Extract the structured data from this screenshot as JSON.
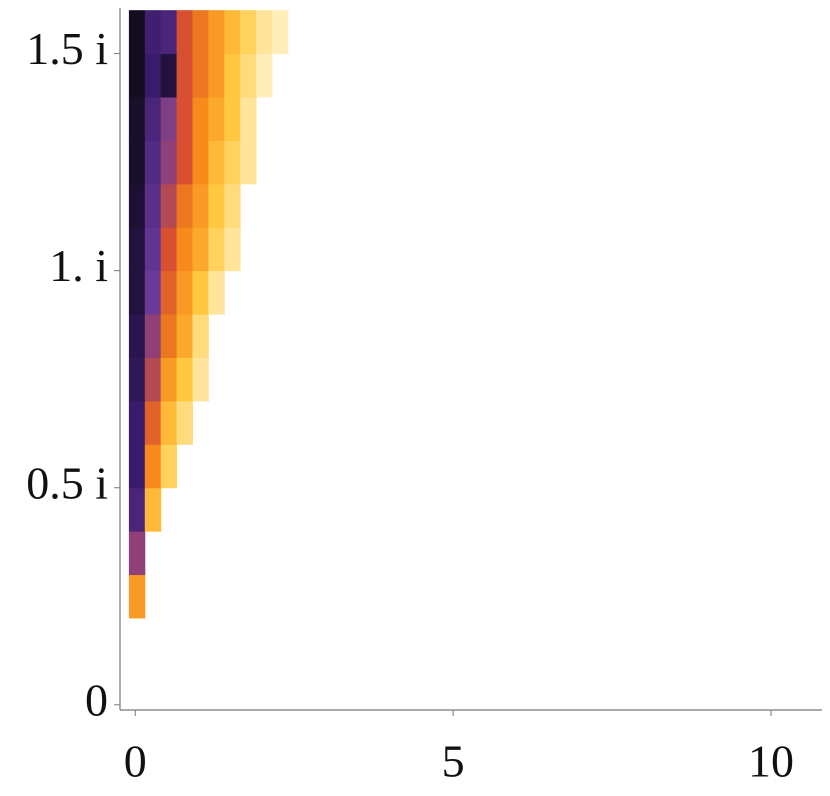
{
  "chart_data": {
    "type": "heatmap",
    "xbins": [
      -0.1,
      0.15,
      0.4,
      0.65,
      0.9,
      1.15,
      1.4,
      1.65,
      1.9,
      2.15,
      2.4
    ],
    "ybins": [
      0,
      0.1,
      0.2,
      0.3,
      0.4,
      0.5,
      0.6,
      0.7,
      0.8,
      0.9,
      1.0,
      1.1,
      1.2,
      1.3,
      1.4,
      1.5,
      1.6
    ],
    "values": [
      [
        null,
        null,
        null,
        null,
        null,
        null,
        null,
        null,
        null,
        null
      ],
      [
        null,
        null,
        null,
        null,
        null,
        null,
        null,
        null,
        null,
        null
      ],
      [
        0.4,
        null,
        null,
        null,
        null,
        null,
        null,
        null,
        null,
        null
      ],
      [
        0.7,
        null,
        null,
        null,
        null,
        null,
        null,
        null,
        null,
        null
      ],
      [
        0.85,
        0.3,
        null,
        null,
        null,
        null,
        null,
        null,
        null,
        null
      ],
      [
        0.9,
        0.45,
        0.2,
        null,
        null,
        null,
        null,
        null,
        null,
        null
      ],
      [
        0.9,
        0.55,
        0.3,
        0.15,
        null,
        null,
        null,
        null,
        null,
        null
      ],
      [
        0.92,
        0.65,
        0.4,
        0.25,
        0.1,
        null,
        null,
        null,
        null,
        null
      ],
      [
        0.93,
        0.7,
        0.5,
        0.35,
        0.15,
        null,
        null,
        null,
        null,
        null
      ],
      [
        0.95,
        0.75,
        0.55,
        0.4,
        0.25,
        0.1,
        null,
        null,
        null,
        null
      ],
      [
        0.95,
        0.78,
        0.6,
        0.45,
        0.35,
        0.2,
        0.1,
        null,
        null,
        null
      ],
      [
        0.96,
        0.8,
        0.65,
        0.5,
        0.4,
        0.25,
        0.15,
        null,
        null,
        null
      ],
      [
        0.97,
        0.82,
        0.7,
        0.6,
        0.45,
        0.3,
        0.2,
        0.1,
        null,
        null
      ],
      [
        0.97,
        0.85,
        0.72,
        0.6,
        0.45,
        0.35,
        0.25,
        0.1,
        null,
        null
      ],
      [
        0.98,
        0.9,
        0.95,
        0.6,
        0.5,
        0.4,
        0.25,
        0.15,
        0.05,
        null
      ],
      [
        0.98,
        0.88,
        0.85,
        0.6,
        0.5,
        0.4,
        0.3,
        0.2,
        0.1,
        0.05
      ]
    ],
    "colorscale": [
      [
        0,
        "#fff8d8"
      ],
      [
        0.25,
        "#ffc840"
      ],
      [
        0.45,
        "#f78a1a"
      ],
      [
        0.6,
        "#d85030"
      ],
      [
        0.75,
        "#6a3a9a"
      ],
      [
        0.9,
        "#3a1a6a"
      ],
      [
        1,
        "#0a0a10"
      ]
    ],
    "xlim": [
      -0.24,
      10.77
    ],
    "ylim": [
      -0.012,
      1.605
    ],
    "xticks": [
      0,
      5,
      10
    ],
    "yticks": [
      0,
      {
        "value": 0.5,
        "label": "0.5 i"
      },
      {
        "value": 1,
        "label": "1. i"
      },
      {
        "value": 1.5,
        "label": "1.5 i"
      }
    ]
  }
}
